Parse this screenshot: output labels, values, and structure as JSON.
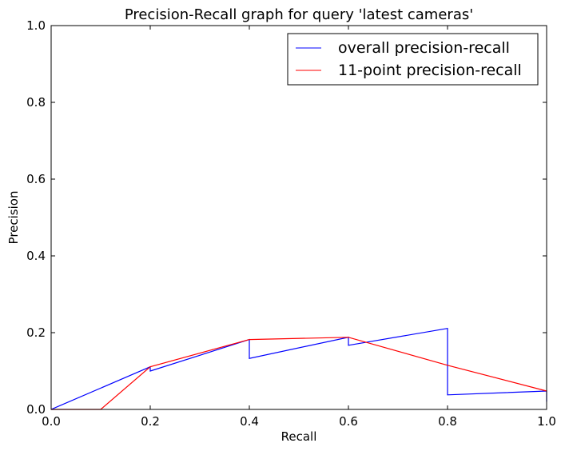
{
  "chart_data": {
    "type": "line",
    "title": "Precision-Recall graph for query 'latest cameras'",
    "xlabel": "Recall",
    "ylabel": "Precision",
    "xlim": [
      0.0,
      1.0
    ],
    "ylim": [
      0.0,
      1.0
    ],
    "xticks": [
      "0.0",
      "0.2",
      "0.4",
      "0.6",
      "0.8",
      "1.0"
    ],
    "yticks": [
      "0.0",
      "0.2",
      "0.4",
      "0.6",
      "0.8",
      "1.0"
    ],
    "grid": false,
    "legend_position": "top-right",
    "series": [
      {
        "name": "overall precision-recall",
        "color": "#0000ff",
        "x": [
          0.0,
          0.2,
          0.2,
          0.4,
          0.4,
          0.6,
          0.6,
          0.8,
          0.8,
          1.0,
          1.0
        ],
        "y": [
          0.0,
          0.111,
          0.1,
          0.182,
          0.133,
          0.188,
          0.167,
          0.211,
          0.038,
          0.048,
          0.02
        ]
      },
      {
        "name": "11-point precision-recall",
        "color": "#ff0000",
        "x": [
          0.0,
          0.1,
          0.2,
          0.4,
          0.6,
          0.8,
          1.0
        ],
        "y": [
          0.0,
          0.0,
          0.111,
          0.182,
          0.188,
          0.115,
          0.048
        ]
      }
    ]
  }
}
